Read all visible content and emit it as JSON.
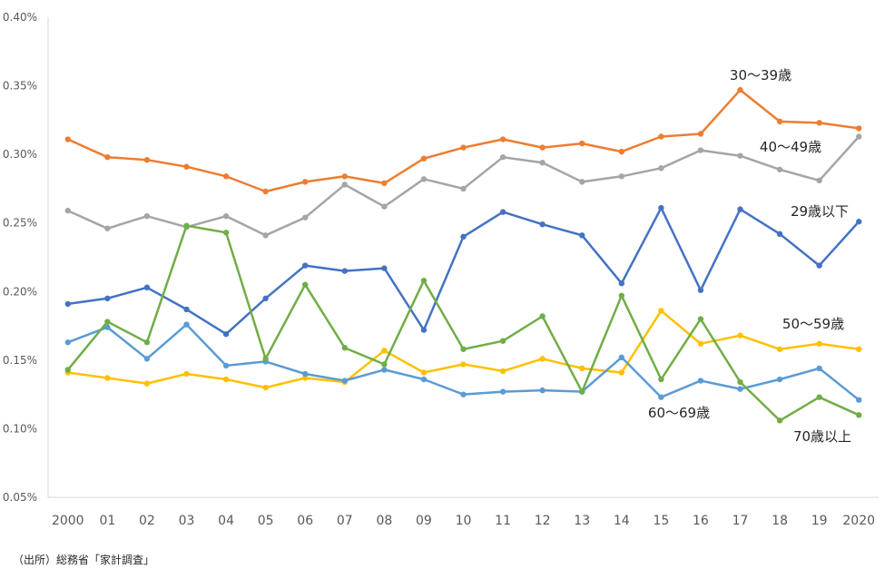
{
  "source": "（出所）総務省「家計調査」",
  "chart_data": {
    "type": "line",
    "categories": [
      "2000",
      "01",
      "02",
      "03",
      "04",
      "05",
      "06",
      "07",
      "08",
      "09",
      "10",
      "11",
      "12",
      "13",
      "14",
      "15",
      "16",
      "17",
      "18",
      "19",
      "2020"
    ],
    "ylim": [
      0.05,
      0.4
    ],
    "yticks": [
      0.05,
      0.1,
      0.15,
      0.2,
      0.25,
      0.3,
      0.35,
      0.4
    ],
    "ytick_labels": [
      "0.05%",
      "0.10%",
      "0.15%",
      "0.20%",
      "0.25%",
      "0.30%",
      "0.35%",
      "0.40%"
    ],
    "grid": false,
    "legend": "inline labels",
    "series": [
      {
        "name": "29歳以下",
        "color": "#4472C4",
        "values": [
          0.191,
          0.195,
          0.203,
          0.187,
          0.169,
          0.195,
          0.219,
          0.215,
          0.217,
          0.172,
          0.24,
          0.258,
          0.249,
          0.241,
          0.206,
          0.261,
          0.201,
          0.26,
          0.242,
          0.219,
          0.251
        ]
      },
      {
        "name": "30～39歳",
        "color": "#ED7D31",
        "values": [
          0.311,
          0.298,
          0.296,
          0.291,
          0.284,
          0.273,
          0.28,
          0.284,
          0.279,
          0.297,
          0.305,
          0.311,
          0.305,
          0.308,
          0.302,
          0.313,
          0.315,
          0.347,
          0.324,
          0.323,
          0.319
        ]
      },
      {
        "name": "40～49歳",
        "color": "#A5A5A5",
        "values": [
          0.259,
          0.246,
          0.255,
          0.247,
          0.255,
          0.241,
          0.254,
          0.278,
          0.262,
          0.282,
          0.275,
          0.298,
          0.294,
          0.28,
          0.284,
          0.29,
          0.303,
          0.299,
          0.289,
          0.281,
          0.313
        ]
      },
      {
        "name": "50～59歳",
        "color": "#FFC000",
        "values": [
          0.141,
          0.137,
          0.133,
          0.14,
          0.136,
          0.13,
          0.137,
          0.134,
          0.157,
          0.141,
          0.147,
          0.142,
          0.151,
          0.144,
          0.141,
          0.186,
          0.162,
          0.168,
          0.158,
          0.162,
          0.158
        ]
      },
      {
        "name": "60～69歳",
        "color": "#5B9BD5",
        "values": [
          0.163,
          0.174,
          0.151,
          0.176,
          0.146,
          0.149,
          0.14,
          0.135,
          0.143,
          0.136,
          0.125,
          0.127,
          0.128,
          0.127,
          0.152,
          0.123,
          0.135,
          0.129,
          0.136,
          0.144,
          0.121
        ]
      },
      {
        "name": "70歳以上",
        "color": "#70AD47",
        "values": [
          0.143,
          0.178,
          0.163,
          0.248,
          0.243,
          0.151,
          0.205,
          0.159,
          0.147,
          0.208,
          0.158,
          0.164,
          0.182,
          0.127,
          0.197,
          0.136,
          0.18,
          0.134,
          0.106,
          0.123,
          0.11
        ]
      }
    ],
    "labels": [
      {
        "series": "30～39歳",
        "text": "30～39歳"
      },
      {
        "series": "40～49歳",
        "text": "40～49歳"
      },
      {
        "series": "29歳以下",
        "text": "29歳以下"
      },
      {
        "series": "50～59歳",
        "text": "50～59歳"
      },
      {
        "series": "60～69歳",
        "text": "60～69歳"
      },
      {
        "series": "70歳以上",
        "text": "70歳以上"
      }
    ]
  }
}
